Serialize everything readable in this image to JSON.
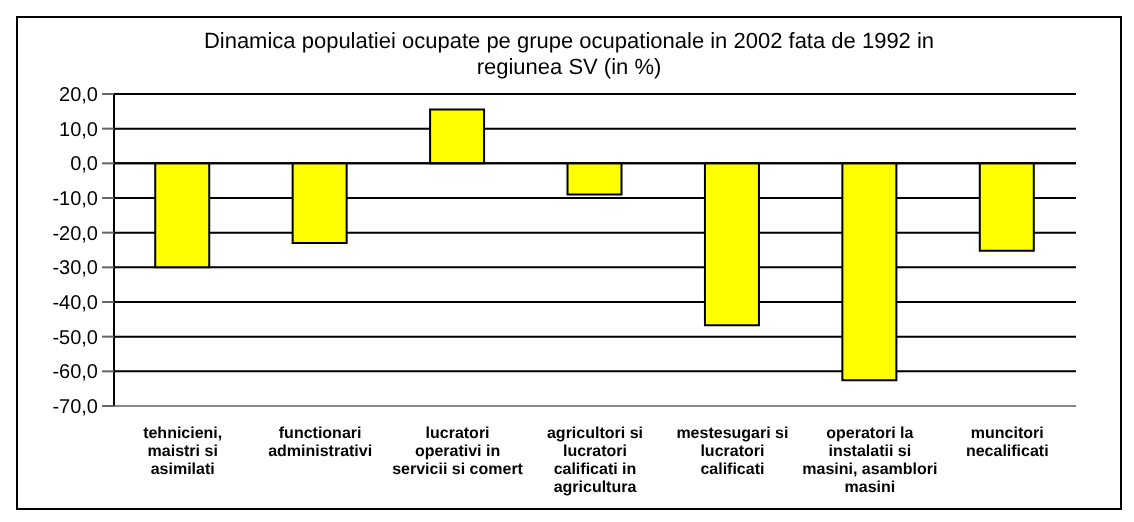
{
  "chart_data": {
    "type": "bar",
    "title": "Dinamica populatiei ocupate pe grupe ocupationale in 2002 fata de 1992 in regiunea SV (in %)",
    "categories": [
      "tehnicieni, maistri si asimilati",
      "functionari administrativi",
      "lucratori operativi in servicii si comert",
      "agricultori si lucratori calificati in agricultura",
      "mestesugari si lucratori calificati",
      "operatori la instalatii si masini, asamblori masini",
      "muncitori necalificati"
    ],
    "values": [
      -30,
      -23,
      15.5,
      -9,
      -46.7,
      -62.6,
      -25.2
    ],
    "color": "#ffff00",
    "ylim": [
      -70,
      20
    ],
    "yticks": [
      {
        "value": -70,
        "label": "-70,0"
      },
      {
        "value": -60,
        "label": "-60,0"
      },
      {
        "value": -50,
        "label": "-50,0"
      },
      {
        "value": -40,
        "label": "-40,0"
      },
      {
        "value": -30,
        "label": "-30,0"
      },
      {
        "value": -20,
        "label": "-20,0"
      },
      {
        "value": -10,
        "label": "-10,0"
      },
      {
        "value": 0,
        "label": "0,0"
      },
      {
        "value": 10,
        "label": "10,0"
      },
      {
        "value": 20,
        "label": "20,0"
      }
    ],
    "grid": "y"
  }
}
